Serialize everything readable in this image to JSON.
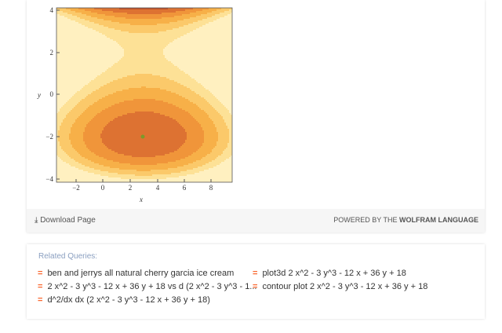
{
  "plot": {
    "y_label": "y",
    "x_label": "x",
    "y_ticks": [
      "4",
      "2",
      "0",
      "−2",
      "−4"
    ],
    "x_ticks": [
      "−2",
      "0",
      "2",
      "4",
      "6",
      "8"
    ]
  },
  "footer": {
    "download": "Download Page",
    "powered_prefix": "POWERED BY THE",
    "powered_brand": "WOLFRAM LANGUAGE"
  },
  "related": {
    "title": "Related Queries:",
    "left": [
      "ben and jerrys all natural cherry garcia ice cream",
      "2 x^2 - 3 y^3 - 12 x + 36 y + 18 vs d (2 x^2 - 3 y^3 - 1...",
      "d^2/dx dx (2 x^2 - 3 y^3 - 12 x + 36 y + 18)"
    ],
    "right": [
      "plot3d 2 x^2 - 3 y^3 - 12 x + 36 y + 18",
      "contour plot 2 x^2 - 3 y^3 - 12 x + 36 y + 18"
    ]
  }
}
